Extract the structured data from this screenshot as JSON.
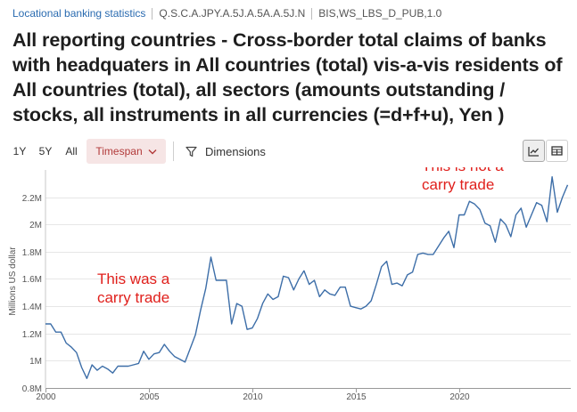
{
  "breadcrumb": {
    "dataset": "Locational banking statistics",
    "series_key": "Q.S.C.A.JPY.A.5J.A.5A.A.5J.N",
    "flow": "BIS,WS_LBS_D_PUB,1.0"
  },
  "title": "All reporting countries - Cross-border total claims of banks with headquaters in All countries (total) vis-a-vis residents of All countries (total), all sectors (amounts outstanding / stocks, all instruments in all currencies (=d+f+u), Yen )",
  "toolbar": {
    "range_1y": "1Y",
    "range_5y": "5Y",
    "range_all": "All",
    "timespan_label": "Timespan",
    "dimensions_label": "Dimensions",
    "icons": {
      "timespan": "chevron-down-icon",
      "dimensions": "filter-icon",
      "line_view": "line-chart-icon",
      "table_view": "table-icon"
    },
    "active_view": "line"
  },
  "colors": {
    "accent": "#b23a3a",
    "accent_bg": "#f6e5e5",
    "series": "#3d6ea8",
    "annotation": "#e0201c",
    "link": "#2a6bb0"
  },
  "chart_data": {
    "type": "line",
    "ylabel": "Millions US dollar",
    "y_unit_scale": "M",
    "ylim": [
      0.8,
      2.4
    ],
    "xlim": [
      2000.0,
      2025.4
    ],
    "grid": "horizontal",
    "y_ticks": [
      {
        "value": 0.8,
        "label": "0.8M"
      },
      {
        "value": 1.0,
        "label": "1M"
      },
      {
        "value": 1.2,
        "label": "1.2M"
      },
      {
        "value": 1.4,
        "label": "1.4M"
      },
      {
        "value": 1.6,
        "label": "1.6M"
      },
      {
        "value": 1.8,
        "label": "1.8M"
      },
      {
        "value": 2.0,
        "label": "2M"
      },
      {
        "value": 2.2,
        "label": "2.2M"
      }
    ],
    "x_ticks": [
      {
        "value": 2000,
        "label": "2000"
      },
      {
        "value": 2005,
        "label": "2005"
      },
      {
        "value": 2010,
        "label": "2010"
      },
      {
        "value": 2015,
        "label": "2015"
      },
      {
        "value": 2020,
        "label": "2020"
      }
    ],
    "series": [
      {
        "x": [
          2000.0,
          2000.25,
          2000.5,
          2000.75,
          2001.0,
          2001.25,
          2001.5,
          2001.75,
          2002.0,
          2002.25,
          2002.5,
          2002.75,
          2003.0,
          2003.25,
          2003.5,
          2003.75,
          2004.0,
          2004.25,
          2004.5,
          2004.75,
          2005.0,
          2005.25,
          2005.5,
          2005.75,
          2006.0,
          2006.25,
          2006.5,
          2006.75,
          2007.0,
          2007.25,
          2007.5,
          2007.75,
          2008.0,
          2008.25,
          2008.5,
          2008.75,
          2009.0,
          2009.25,
          2009.5,
          2009.75,
          2010.0,
          2010.25,
          2010.5,
          2010.75,
          2011.0,
          2011.25,
          2011.5,
          2011.75,
          2012.0,
          2012.25,
          2012.5,
          2012.75,
          2013.0,
          2013.25,
          2013.5,
          2013.75,
          2014.0,
          2014.25,
          2014.5,
          2014.75,
          2015.0,
          2015.25,
          2015.5,
          2015.75,
          2016.0,
          2016.25,
          2016.5,
          2016.75,
          2017.0,
          2017.25,
          2017.5,
          2017.75,
          2018.0,
          2018.25,
          2018.5,
          2018.75,
          2019.0,
          2019.25,
          2019.5,
          2019.75,
          2020.0,
          2020.25,
          2020.5,
          2020.75,
          2021.0,
          2021.25,
          2021.5,
          2021.75,
          2022.0,
          2022.25,
          2022.5,
          2022.75,
          2023.0,
          2023.25,
          2023.5,
          2023.75,
          2024.0,
          2024.25,
          2024.5,
          2024.75,
          2025.0,
          2025.25
        ],
        "values": [
          1.27,
          1.27,
          1.21,
          1.21,
          1.13,
          1.1,
          1.06,
          0.95,
          0.87,
          0.97,
          0.93,
          0.96,
          0.94,
          0.91,
          0.96,
          0.96,
          0.96,
          0.97,
          0.98,
          1.07,
          1.01,
          1.05,
          1.06,
          1.12,
          1.07,
          1.03,
          1.01,
          0.99,
          1.09,
          1.19,
          1.37,
          1.53,
          1.76,
          1.59,
          1.59,
          1.59,
          1.27,
          1.42,
          1.4,
          1.23,
          1.24,
          1.31,
          1.42,
          1.49,
          1.45,
          1.47,
          1.62,
          1.61,
          1.52,
          1.6,
          1.66,
          1.56,
          1.59,
          1.47,
          1.52,
          1.49,
          1.48,
          1.54,
          1.54,
          1.4,
          1.39,
          1.38,
          1.4,
          1.44,
          1.56,
          1.69,
          1.73,
          1.56,
          1.57,
          1.55,
          1.63,
          1.65,
          1.78,
          1.79,
          1.78,
          1.78,
          1.84,
          1.9,
          1.95,
          1.83,
          2.07,
          2.07,
          2.17,
          2.15,
          2.11,
          2.01,
          1.99,
          1.87,
          2.04,
          2.0,
          1.91,
          2.07,
          2.12,
          1.98,
          2.07,
          2.16,
          2.14,
          2.02,
          2.35,
          2.09,
          2.2,
          2.29
        ]
      }
    ],
    "annotations": [
      {
        "text_lines": [
          "This was a",
          "carry trade"
        ],
        "x": 2002.5,
        "y": 1.565
      },
      {
        "text_lines": [
          "This is not a",
          "carry trade"
        ],
        "x": 2018.2,
        "y": 2.395
      }
    ]
  }
}
